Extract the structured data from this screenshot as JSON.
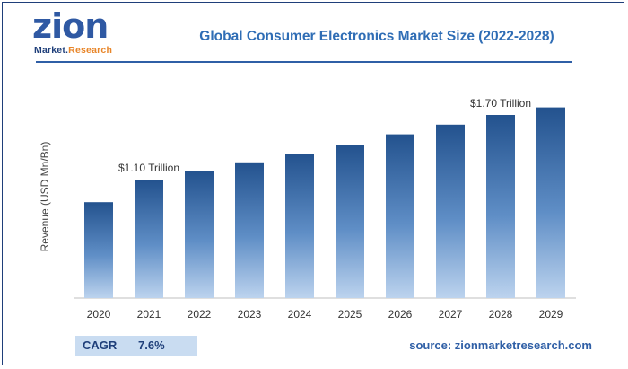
{
  "logo": {
    "word": "zion",
    "sub_left": "Market.",
    "sub_right": "Research"
  },
  "header": {
    "title": "Global Consumer Electronics Market Size (2022-2028)"
  },
  "chart_data": {
    "type": "bar",
    "title": "Global Consumer Electronics Market Size (2022-2028)",
    "xlabel": "",
    "ylabel": "Revenue (USD Mn/Bn)",
    "categories": [
      "2020",
      "2021",
      "2022",
      "2023",
      "2024",
      "2025",
      "2026",
      "2027",
      "2028",
      "2029"
    ],
    "values": [
      0.89,
      1.1,
      1.18,
      1.26,
      1.34,
      1.42,
      1.52,
      1.61,
      1.7,
      1.77
    ],
    "ylim": [
      0,
      2.0
    ],
    "annotations": [
      {
        "category": "2021",
        "text": "$1.10 Trillion"
      },
      {
        "category": "2028",
        "text": "$1.70 Trillion"
      }
    ],
    "grid": false,
    "colors": {
      "bar_light": "#bcd3ee",
      "bar_dark": "#23528e"
    }
  },
  "footer": {
    "cagr_label": "CAGR",
    "cagr_value": "7.6%",
    "source": "source: zionmarketresearch.com"
  },
  "colors": {
    "accent": "#2f6db5",
    "dark": "#1f3f7a",
    "orange": "#e8862a"
  }
}
